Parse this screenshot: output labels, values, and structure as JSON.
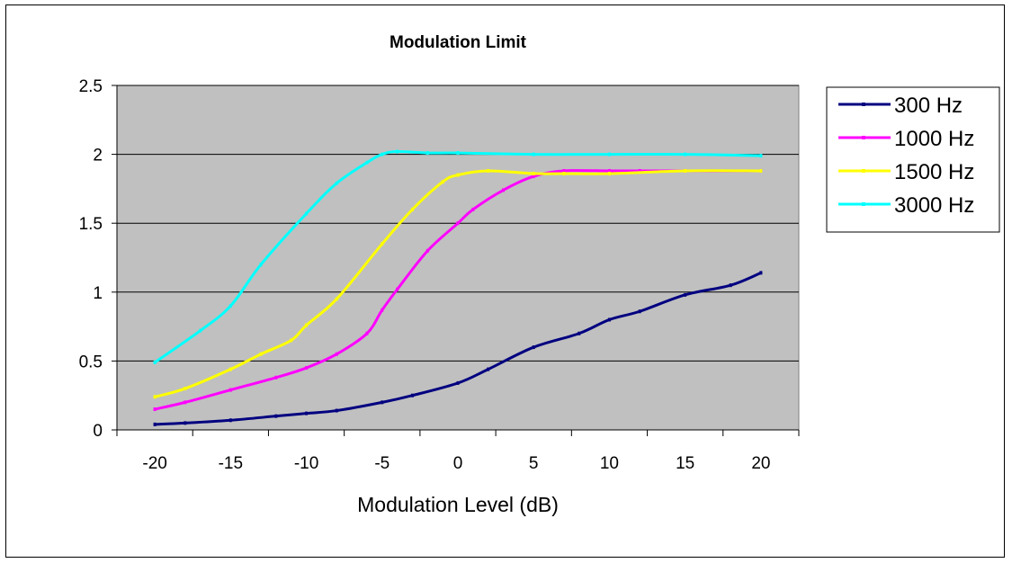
{
  "chart_data": {
    "type": "line",
    "title": "Modulation Limit",
    "xlabel": "Modulation Level (dB)",
    "ylabel": "",
    "xlim": [
      -22.5,
      22.5
    ],
    "ylim": [
      0,
      2.5
    ],
    "x_ticks": [
      "-20",
      "-15",
      "-10",
      "-5",
      "0",
      "5",
      "10",
      "15",
      "20"
    ],
    "y_ticks": [
      "0",
      "0.5",
      "1",
      "1.5",
      "2",
      "2.5"
    ],
    "grid": "horizontal",
    "legend": "right",
    "plot_background": "#c0c0c0",
    "series": [
      {
        "name": "300 Hz",
        "color": "#000080",
        "points": [
          [
            -20,
            0.04
          ],
          [
            -18,
            0.05
          ],
          [
            -15,
            0.07
          ],
          [
            -12,
            0.1
          ],
          [
            -10,
            0.12
          ],
          [
            -8,
            0.14
          ],
          [
            -5,
            0.2
          ],
          [
            -3,
            0.25
          ],
          [
            0,
            0.34
          ],
          [
            2,
            0.44
          ],
          [
            5,
            0.6
          ],
          [
            8,
            0.7
          ],
          [
            10,
            0.8
          ],
          [
            12,
            0.86
          ],
          [
            15,
            0.98
          ],
          [
            18,
            1.05
          ],
          [
            20,
            1.14
          ]
        ]
      },
      {
        "name": "1000 Hz",
        "color": "#ff00ff",
        "points": [
          [
            -20,
            0.15
          ],
          [
            -18,
            0.2
          ],
          [
            -15,
            0.29
          ],
          [
            -12,
            0.38
          ],
          [
            -10,
            0.45
          ],
          [
            -8,
            0.55
          ],
          [
            -6,
            0.7
          ],
          [
            -5,
            0.87
          ],
          [
            -4,
            1.02
          ],
          [
            -2,
            1.3
          ],
          [
            0,
            1.5
          ],
          [
            1,
            1.6
          ],
          [
            3,
            1.74
          ],
          [
            5,
            1.84
          ],
          [
            7,
            1.88
          ],
          [
            10,
            1.88
          ],
          [
            12,
            1.88
          ],
          [
            15,
            1.88
          ],
          [
            20,
            1.88
          ]
        ]
      },
      {
        "name": "1500 Hz",
        "color": "#ffff00",
        "points": [
          [
            -20,
            0.24
          ],
          [
            -18,
            0.3
          ],
          [
            -15,
            0.44
          ],
          [
            -13,
            0.55
          ],
          [
            -11,
            0.65
          ],
          [
            -10,
            0.76
          ],
          [
            -8,
            0.95
          ],
          [
            -5,
            1.35
          ],
          [
            -3,
            1.6
          ],
          [
            -1,
            1.8
          ],
          [
            0,
            1.85
          ],
          [
            2,
            1.88
          ],
          [
            5,
            1.86
          ],
          [
            7,
            1.86
          ],
          [
            10,
            1.86
          ],
          [
            15,
            1.88
          ],
          [
            20,
            1.88
          ]
        ]
      },
      {
        "name": "3000 Hz",
        "color": "#00ffff",
        "points": [
          [
            -20,
            0.49
          ],
          [
            -17,
            0.72
          ],
          [
            -15,
            0.9
          ],
          [
            -13,
            1.2
          ],
          [
            -10,
            1.57
          ],
          [
            -8,
            1.79
          ],
          [
            -6,
            1.94
          ],
          [
            -5,
            2.0
          ],
          [
            -4,
            2.02
          ],
          [
            -2,
            2.01
          ],
          [
            0,
            2.01
          ],
          [
            5,
            2.0
          ],
          [
            10,
            2.0
          ],
          [
            15,
            2.0
          ],
          [
            20,
            1.99
          ]
        ]
      }
    ]
  }
}
